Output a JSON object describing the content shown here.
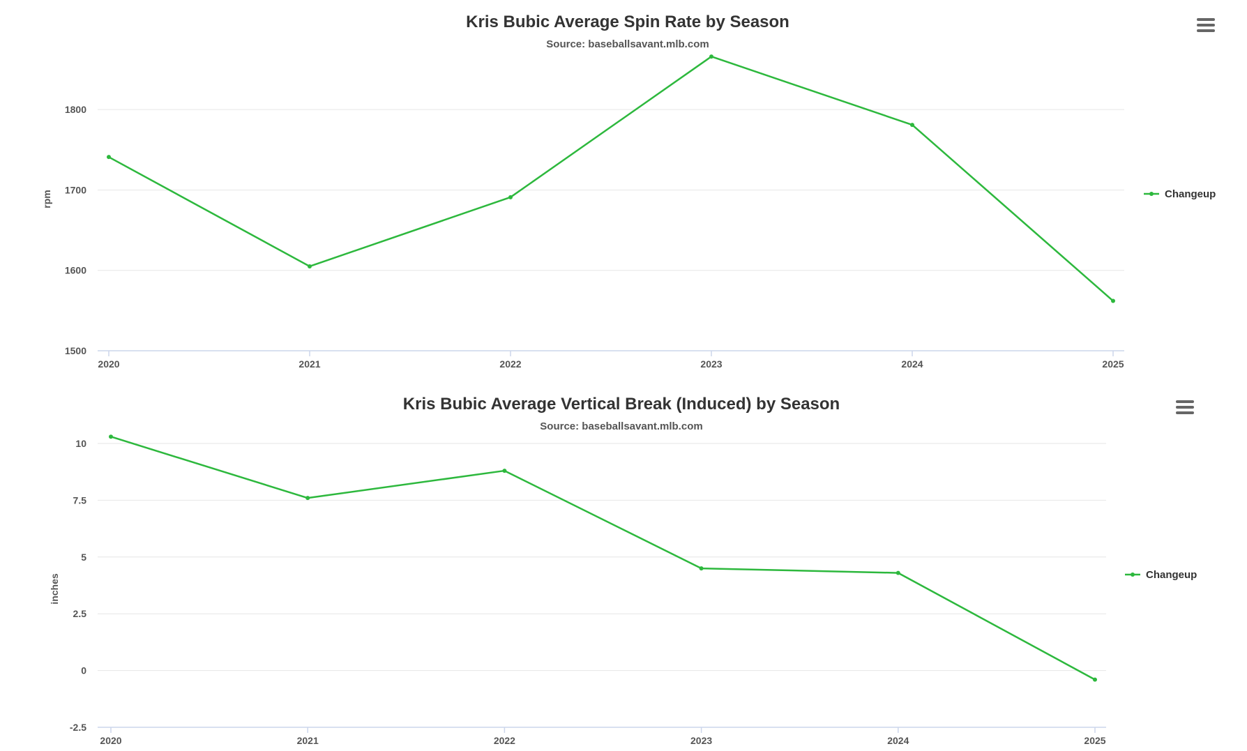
{
  "charts": [
    {
      "title": "Kris Bubic Average Spin Rate by Season",
      "subtitle": "Source: baseballsavant.mlb.com",
      "menu_icon": "hamburger-menu-icon"
    },
    {
      "title": "Kris Bubic Average Vertical Break (Induced) by Season",
      "subtitle": "Source: baseballsavant.mlb.com",
      "menu_icon": "hamburger-menu-icon"
    }
  ],
  "chart_data": [
    {
      "type": "line",
      "title": "Kris Bubic Average Spin Rate by Season",
      "subtitle": "Source: baseballsavant.mlb.com",
      "x": [
        "2020",
        "2021",
        "2022",
        "2023",
        "2024",
        "2025"
      ],
      "xlabel": "",
      "ylabel": "rpm",
      "ylim": [
        1500,
        1860
      ],
      "yticks": [
        "1500",
        "1600",
        "1700",
        "1800"
      ],
      "series": [
        {
          "name": "Changeup",
          "color": "#2db83d",
          "values": [
            1741,
            1605,
            1691,
            1866,
            1781,
            1562
          ]
        }
      ],
      "grid": true,
      "legend": "right"
    },
    {
      "type": "line",
      "title": "Kris Bubic Average Vertical Break (Induced) by Season",
      "subtitle": "Source: baseballsavant.mlb.com",
      "x": [
        "2020",
        "2021",
        "2022",
        "2023",
        "2024",
        "2025"
      ],
      "xlabel": "",
      "ylabel": "inches",
      "ylim": [
        -2.5,
        10
      ],
      "yticks": [
        "-2.5",
        "0",
        "2.5",
        "5",
        "7.5",
        "10"
      ],
      "series": [
        {
          "name": "Changeup",
          "color": "#2db83d",
          "values": [
            10.3,
            7.6,
            8.8,
            4.5,
            4.3,
            -0.4
          ]
        }
      ],
      "grid": true,
      "legend": "right"
    }
  ]
}
